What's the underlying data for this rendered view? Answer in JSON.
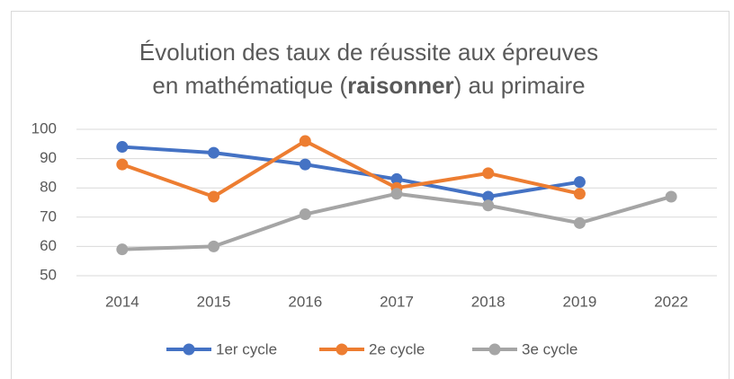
{
  "chart_data": {
    "type": "line",
    "title": {
      "line1": "Évolution des taux de réussite aux épreuves",
      "line2_before": "en mathématique (",
      "line2_bold": "raisonner",
      "line2_after": ") au primaire"
    },
    "categories": [
      "2014",
      "2015",
      "2016",
      "2017",
      "2018",
      "2019",
      "2022"
    ],
    "series": [
      {
        "name": "1er cycle",
        "color": "#4472c4",
        "values": [
          94,
          92,
          88,
          83,
          77,
          82,
          null
        ]
      },
      {
        "name": "2e cycle",
        "color": "#ed7d31",
        "values": [
          88,
          77,
          96,
          80,
          85,
          78,
          null
        ]
      },
      {
        "name": "3e cycle",
        "color": "#a5a5a5",
        "values": [
          59,
          60,
          71,
          78,
          74,
          68,
          77
        ]
      }
    ],
    "ylim": [
      50,
      100
    ],
    "yticks": [
      50,
      60,
      70,
      80,
      90,
      100
    ],
    "grid": true,
    "legend": "bottom"
  }
}
